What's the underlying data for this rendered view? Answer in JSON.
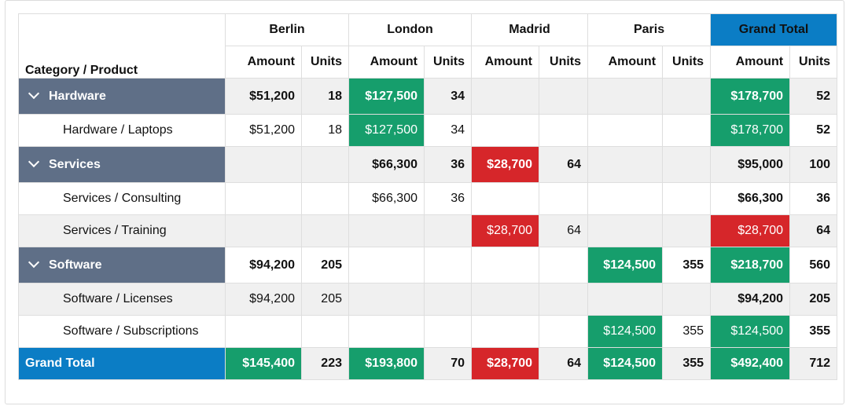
{
  "header": {
    "corner_label": "Category / Product",
    "cities": [
      "Berlin",
      "London",
      "Madrid",
      "Paris"
    ],
    "grand_total_label": "Grand Total",
    "amount_label": "Amount",
    "units_label": "Units"
  },
  "colors": {
    "group_header_bg": "#5f6f87",
    "grand_total_bg": "#0b7dc5",
    "high_value": "#169e6c",
    "low_value": "#d6262a",
    "stripe": "#f0f0f0"
  },
  "groups": [
    {
      "label": "Hardware",
      "row": {
        "berlin_amount": "$51,200",
        "berlin_units": "18",
        "london_amount": "$127,500",
        "london_units": "34",
        "madrid_amount": "",
        "madrid_units": "",
        "paris_amount": "",
        "paris_units": "",
        "total_amount": "$178,700",
        "total_units": "52"
      },
      "items": [
        {
          "label": "Hardware / Laptops",
          "berlin_amount": "$51,200",
          "berlin_units": "18",
          "london_amount": "$127,500",
          "london_units": "34",
          "madrid_amount": "",
          "madrid_units": "",
          "paris_amount": "",
          "paris_units": "",
          "total_amount": "$178,700",
          "total_units": "52"
        }
      ]
    },
    {
      "label": "Services",
      "row": {
        "berlin_amount": "",
        "berlin_units": "",
        "london_amount": "$66,300",
        "london_units": "36",
        "madrid_amount": "$28,700",
        "madrid_units": "64",
        "paris_amount": "",
        "paris_units": "",
        "total_amount": "$95,000",
        "total_units": "100"
      },
      "items": [
        {
          "label": "Services / Consulting",
          "berlin_amount": "",
          "berlin_units": "",
          "london_amount": "$66,300",
          "london_units": "36",
          "madrid_amount": "",
          "madrid_units": "",
          "paris_amount": "",
          "paris_units": "",
          "total_amount": "$66,300",
          "total_units": "36"
        },
        {
          "label": "Services / Training",
          "berlin_amount": "",
          "berlin_units": "",
          "london_amount": "",
          "london_units": "",
          "madrid_amount": "$28,700",
          "madrid_units": "64",
          "paris_amount": "",
          "paris_units": "",
          "total_amount": "$28,700",
          "total_units": "64"
        }
      ]
    },
    {
      "label": "Software",
      "row": {
        "berlin_amount": "$94,200",
        "berlin_units": "205",
        "london_amount": "",
        "london_units": "",
        "madrid_amount": "",
        "madrid_units": "",
        "paris_amount": "$124,500",
        "paris_units": "355",
        "total_amount": "$218,700",
        "total_units": "560"
      },
      "items": [
        {
          "label": "Software / Licenses",
          "berlin_amount": "$94,200",
          "berlin_units": "205",
          "london_amount": "",
          "london_units": "",
          "madrid_amount": "",
          "madrid_units": "",
          "paris_amount": "",
          "paris_units": "",
          "total_amount": "$94,200",
          "total_units": "205"
        },
        {
          "label": "Software / Subscriptions",
          "berlin_amount": "",
          "berlin_units": "",
          "london_amount": "",
          "london_units": "",
          "madrid_amount": "",
          "madrid_units": "",
          "paris_amount": "$124,500",
          "paris_units": "355",
          "total_amount": "$124,500",
          "total_units": "355"
        }
      ]
    }
  ],
  "grand_total": {
    "label": "Grand Total",
    "berlin_amount": "$145,400",
    "berlin_units": "223",
    "london_amount": "$193,800",
    "london_units": "70",
    "madrid_amount": "$28,700",
    "madrid_units": "64",
    "paris_amount": "$124,500",
    "paris_units": "355",
    "total_amount": "$492,400",
    "total_units": "712"
  }
}
